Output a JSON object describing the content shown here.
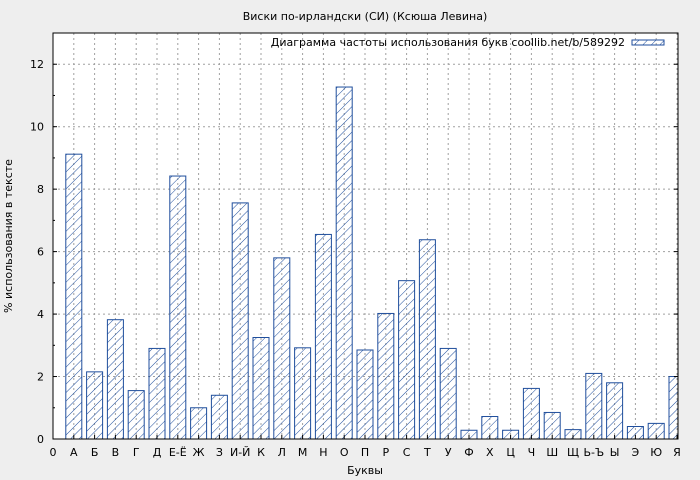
{
  "chart_data": {
    "type": "bar",
    "title": "Виски по-ирландски (СИ) (Ксюша Левина)",
    "xlabel": "Буквы",
    "ylabel": "% использования в тексте",
    "legend": "Диаграмма частоты использования букв coollib.net/b/589292",
    "legend_position": "top-right",
    "grid": true,
    "ylim": [
      0,
      13
    ],
    "yticks": [
      0,
      2,
      4,
      6,
      8,
      10,
      12
    ],
    "x_start_label": "0",
    "categories": [
      "А",
      "Б",
      "В",
      "Г",
      "Д",
      "Е-Ё",
      "Ж",
      "З",
      "И-Й",
      "К",
      "Л",
      "М",
      "Н",
      "О",
      "П",
      "Р",
      "С",
      "Т",
      "У",
      "Ф",
      "Х",
      "Ц",
      "Ч",
      "Ш",
      "Щ",
      "Ь-Ъ",
      "Ы",
      "Э",
      "Ю",
      "Я"
    ],
    "values": [
      9.12,
      2.15,
      3.82,
      1.55,
      2.9,
      8.42,
      1.0,
      1.4,
      7.56,
      3.25,
      5.8,
      2.92,
      6.55,
      11.27,
      2.85,
      4.02,
      5.07,
      6.38,
      2.9,
      0.28,
      0.72,
      0.28,
      1.62,
      0.85,
      0.3,
      2.1,
      1.8,
      0.4,
      0.5,
      2.0
    ],
    "colors": {
      "bar_stroke": "#1f4e9c",
      "hatch": "#1f4e9c",
      "plot_bg": "#ffffff",
      "page_bg": "#eeeeee",
      "grid": "#a0a0a0"
    }
  }
}
